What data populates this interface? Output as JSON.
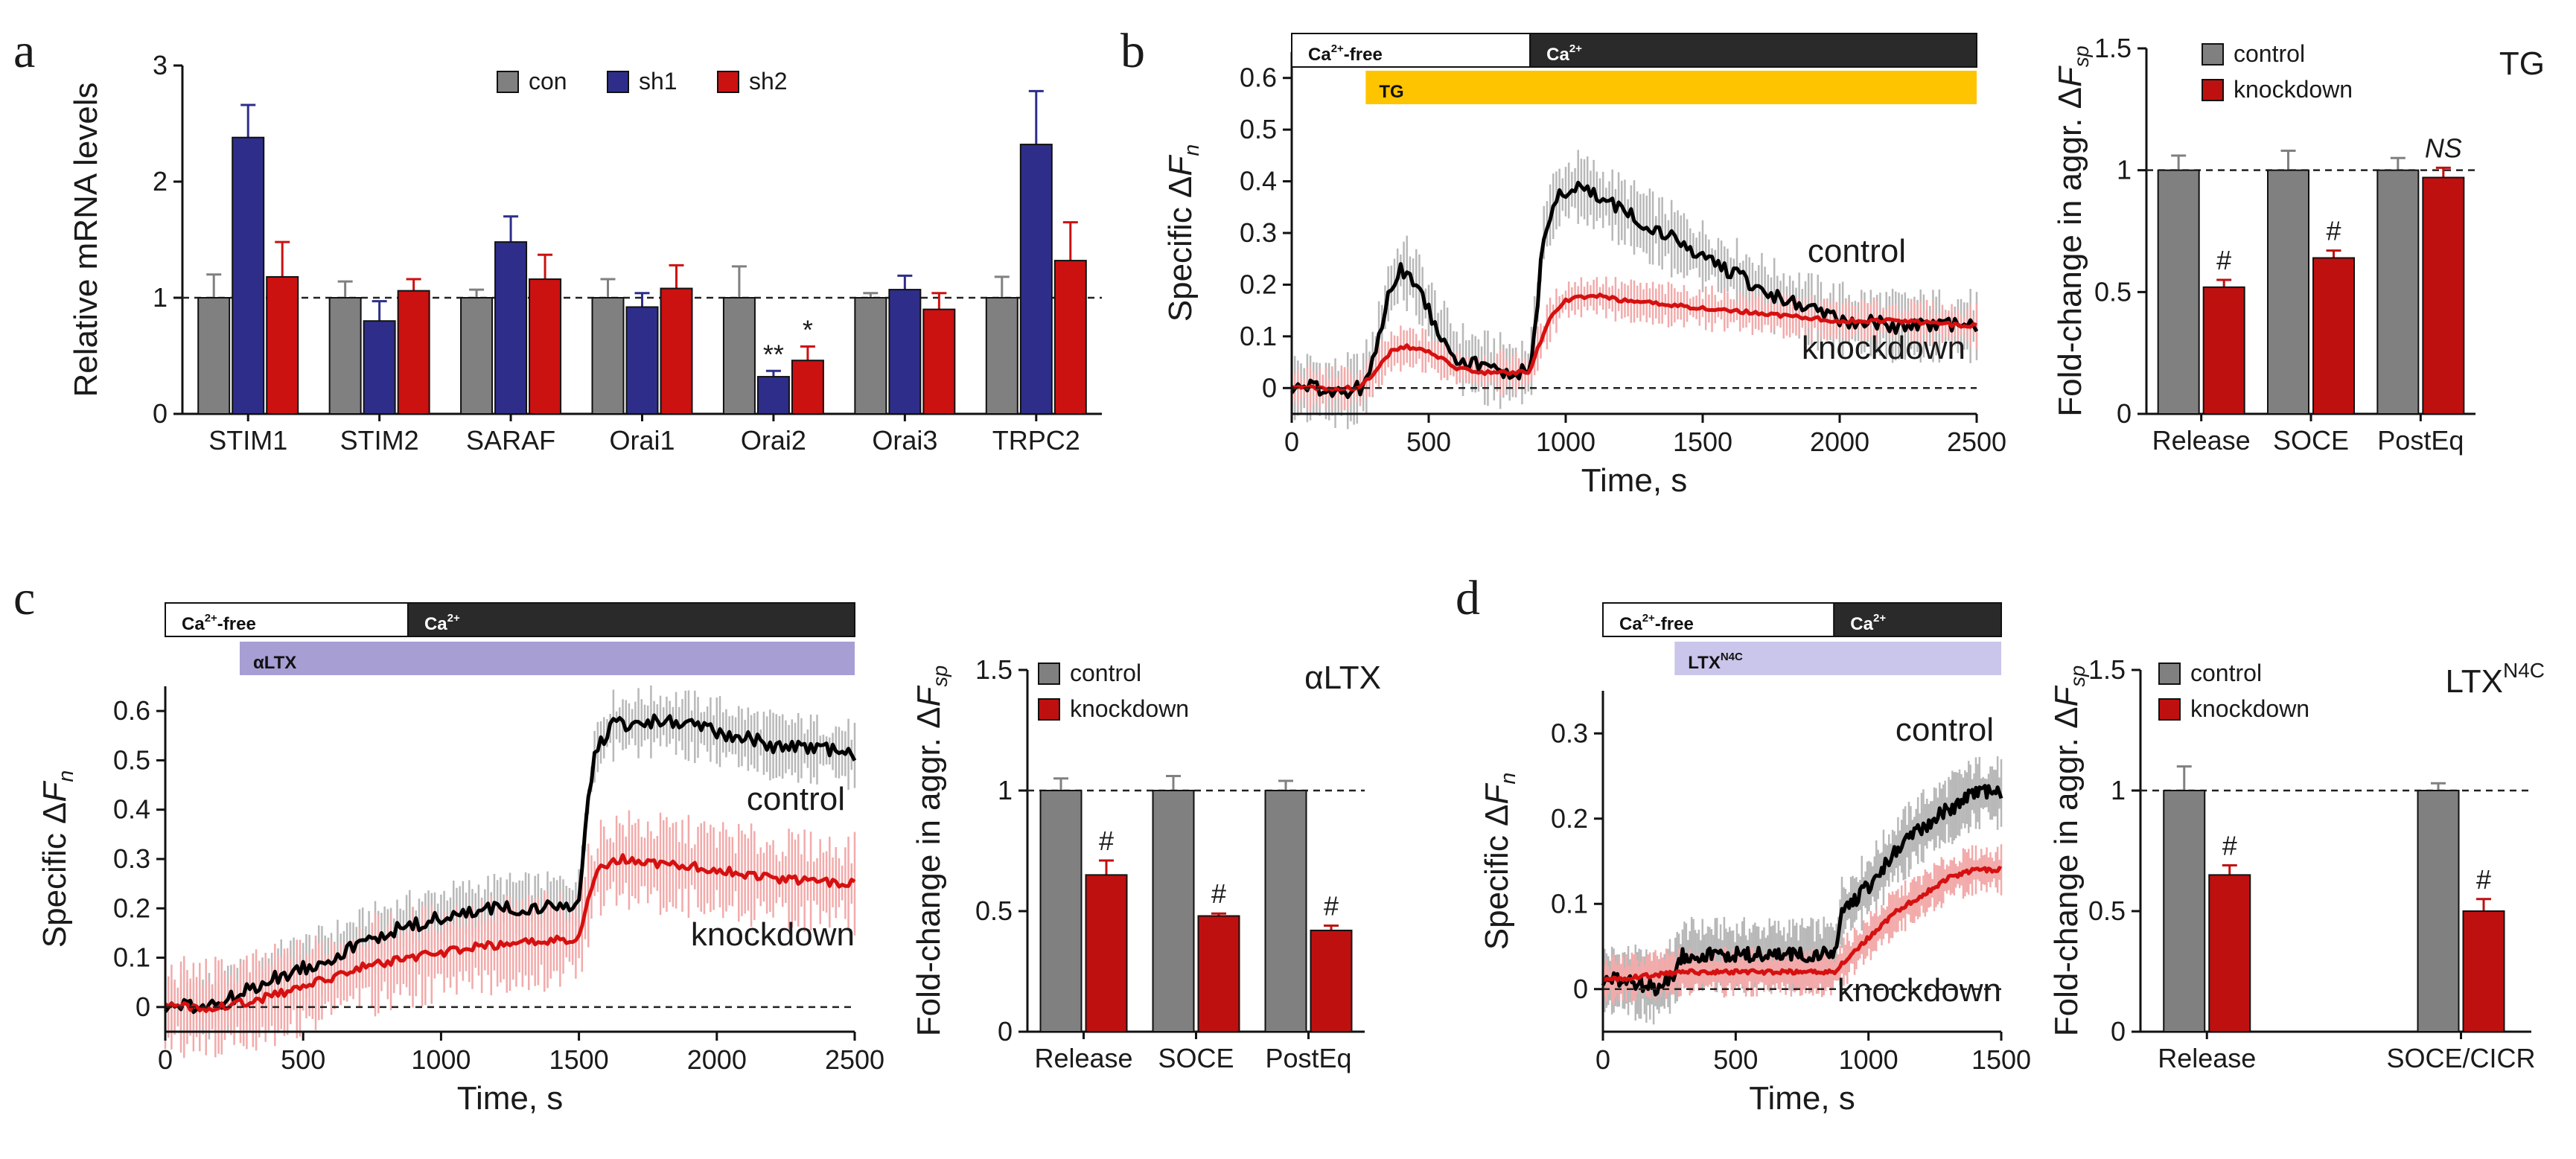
{
  "colors": {
    "con": "#808080",
    "sh1": "#2e2e8a",
    "sh2": "#cc1111",
    "control": "#808080",
    "knockdown": "#bf1010",
    "trace_control": "#000000",
    "trace_control_err": "#b8b8b8",
    "trace_knockdown": "#d51010",
    "trace_knockdown_err": "#f2aaaa",
    "tg": "#ffc400",
    "altx": "#a79ed4",
    "ltxn4c": "#cac5ea",
    "dark_bar": "#2a2a2a"
  },
  "chart_data": [
    {
      "panel": "a",
      "type": "bar",
      "ylabel": "Relative mRNA levels",
      "ylim": [
        0,
        3
      ],
      "yticks": [
        "0",
        "1",
        "2",
        "3"
      ],
      "reference_line": 1,
      "categories": [
        "STIM1",
        "STIM2",
        "SARAF",
        "Orai1",
        "Orai2",
        "Orai3",
        "TRPC2"
      ],
      "series": [
        {
          "name": "con",
          "values": [
            1.0,
            1.0,
            1.0,
            1.0,
            1.0,
            1.0,
            1.0
          ],
          "errors": [
            0.2,
            0.14,
            0.07,
            0.16,
            0.27,
            0.04,
            0.18
          ]
        },
        {
          "name": "sh1",
          "values": [
            2.38,
            0.8,
            1.48,
            0.92,
            0.32,
            1.07,
            2.32
          ],
          "errors": [
            0.28,
            0.17,
            0.22,
            0.12,
            0.05,
            0.12,
            0.46
          ]
        },
        {
          "name": "sh2",
          "values": [
            1.18,
            1.06,
            1.16,
            1.08,
            0.46,
            0.9,
            1.32
          ],
          "errors": [
            0.3,
            0.1,
            0.21,
            0.2,
            0.12,
            0.14,
            0.33
          ]
        }
      ],
      "annotations": [
        {
          "category": "Orai2",
          "series": "sh1",
          "text": "**"
        },
        {
          "category": "Orai2",
          "series": "sh2",
          "text": "*"
        }
      ]
    },
    {
      "panel": "b",
      "type": "line",
      "xlabel": "Time, s",
      "ylabel": "Specific ΔF",
      "ylabel_sub": "n",
      "xlim": [
        0,
        2500
      ],
      "ylim": [
        -0.05,
        0.65
      ],
      "xticks": [
        "0",
        "500",
        "1000",
        "1500",
        "2000",
        "2500"
      ],
      "yticks": [
        "0",
        "0.1",
        "0.2",
        "0.3",
        "0.4",
        "0.5",
        "0.6"
      ],
      "series_labels": [
        "control",
        "knockdown"
      ],
      "protocol": [
        {
          "label": "Ca²⁺-free",
          "start": 0,
          "end": 870,
          "style": "white"
        },
        {
          "label": "Ca²⁺",
          "start": 870,
          "end": 2500,
          "style": "dark"
        },
        {
          "label": "TG",
          "start": 270,
          "end": 2500,
          "style": "tg"
        }
      ],
      "series": [
        {
          "name": "control",
          "points": [
            [
              0,
              0.0
            ],
            [
              80,
              0.0
            ],
            [
              160,
              -0.01
            ],
            [
              250,
              0.0
            ],
            [
              300,
              0.05
            ],
            [
              350,
              0.18
            ],
            [
              400,
              0.23
            ],
            [
              450,
              0.21
            ],
            [
              500,
              0.15
            ],
            [
              550,
              0.1
            ],
            [
              600,
              0.06
            ],
            [
              700,
              0.04
            ],
            [
              800,
              0.03
            ],
            [
              870,
              0.03
            ],
            [
              890,
              0.12
            ],
            [
              920,
              0.3
            ],
            [
              960,
              0.36
            ],
            [
              1000,
              0.38
            ],
            [
              1050,
              0.39
            ],
            [
              1150,
              0.36
            ],
            [
              1250,
              0.33
            ],
            [
              1350,
              0.3
            ],
            [
              1450,
              0.27
            ],
            [
              1550,
              0.24
            ],
            [
              1650,
              0.21
            ],
            [
              1750,
              0.18
            ],
            [
              1850,
              0.16
            ],
            [
              1950,
              0.14
            ],
            [
              2050,
              0.13
            ],
            [
              2200,
              0.12
            ],
            [
              2350,
              0.12
            ],
            [
              2500,
              0.12
            ]
          ],
          "error": 0.05
        },
        {
          "name": "knockdown",
          "points": [
            [
              0,
              0.0
            ],
            [
              250,
              0.0
            ],
            [
              300,
              0.03
            ],
            [
              360,
              0.07
            ],
            [
              420,
              0.08
            ],
            [
              500,
              0.07
            ],
            [
              600,
              0.04
            ],
            [
              700,
              0.03
            ],
            [
              870,
              0.03
            ],
            [
              900,
              0.08
            ],
            [
              950,
              0.14
            ],
            [
              1000,
              0.17
            ],
            [
              1100,
              0.18
            ],
            [
              1200,
              0.17
            ],
            [
              1400,
              0.16
            ],
            [
              1600,
              0.15
            ],
            [
              1800,
              0.14
            ],
            [
              2000,
              0.13
            ],
            [
              2200,
              0.13
            ],
            [
              2500,
              0.12
            ]
          ],
          "error": 0.03
        }
      ]
    },
    {
      "panel": "b",
      "type": "bar",
      "ylabel": "Fold-change in aggr. ΔF",
      "ylabel_sub": "sp",
      "title": "TG",
      "ylim": [
        0,
        1.5
      ],
      "yticks": [
        "0",
        "0.5",
        "1",
        "1.5"
      ],
      "reference_line": 1,
      "legend": [
        "control",
        "knockdown"
      ],
      "categories": [
        "Release",
        "SOCE",
        "PostEq"
      ],
      "series": [
        {
          "name": "control",
          "values": [
            1.0,
            1.0,
            1.0
          ],
          "errors": [
            0.06,
            0.08,
            0.05
          ]
        },
        {
          "name": "knockdown",
          "values": [
            0.52,
            0.64,
            0.97
          ],
          "errors": [
            0.03,
            0.03,
            0.04
          ]
        }
      ],
      "annotations": [
        "#",
        "#",
        "NS"
      ]
    },
    {
      "panel": "c",
      "type": "line",
      "xlabel": "Time, s",
      "ylabel": "Specific ΔF",
      "ylabel_sub": "n",
      "xlim": [
        0,
        2500
      ],
      "ylim": [
        -0.05,
        0.65
      ],
      "xticks": [
        "0",
        "500",
        "1000",
        "1500",
        "2000",
        "2500"
      ],
      "yticks": [
        "0",
        "0.1",
        "0.2",
        "0.3",
        "0.4",
        "0.5",
        "0.6"
      ],
      "series_labels": [
        "control",
        "knockdown"
      ],
      "protocol": [
        {
          "label": "Ca²⁺-free",
          "start": 0,
          "end": 880,
          "style": "white"
        },
        {
          "label": "Ca²⁺",
          "start": 880,
          "end": 2500,
          "style": "dark"
        },
        {
          "label": "αLTX",
          "start": 270,
          "end": 2500,
          "style": "altx"
        }
      ],
      "series": [
        {
          "name": "control",
          "points": [
            [
              0,
              0.0
            ],
            [
              150,
              0.0
            ],
            [
              250,
              0.02
            ],
            [
              400,
              0.06
            ],
            [
              600,
              0.1
            ],
            [
              800,
              0.15
            ],
            [
              1000,
              0.18
            ],
            [
              1200,
              0.2
            ],
            [
              1400,
              0.2
            ],
            [
              1500,
              0.21
            ],
            [
              1530,
              0.4
            ],
            [
              1560,
              0.52
            ],
            [
              1620,
              0.57
            ],
            [
              1800,
              0.58
            ],
            [
              2000,
              0.56
            ],
            [
              2200,
              0.53
            ],
            [
              2400,
              0.52
            ],
            [
              2500,
              0.51
            ]
          ],
          "error": 0.05
        },
        {
          "name": "knockdown",
          "points": [
            [
              0,
              0.0
            ],
            [
              200,
              0.0
            ],
            [
              300,
              0.01
            ],
            [
              500,
              0.04
            ],
            [
              700,
              0.08
            ],
            [
              900,
              0.1
            ],
            [
              1100,
              0.12
            ],
            [
              1300,
              0.13
            ],
            [
              1500,
              0.14
            ],
            [
              1530,
              0.22
            ],
            [
              1570,
              0.28
            ],
            [
              1650,
              0.3
            ],
            [
              1800,
              0.29
            ],
            [
              2000,
              0.28
            ],
            [
              2200,
              0.26
            ],
            [
              2500,
              0.25
            ]
          ],
          "error": 0.07
        }
      ]
    },
    {
      "panel": "c",
      "type": "bar",
      "ylabel": "Fold-change in aggr. ΔF",
      "ylabel_sub": "sp",
      "title": "αLTX",
      "ylim": [
        0,
        1.5
      ],
      "yticks": [
        "0",
        "0.5",
        "1",
        "1.5"
      ],
      "reference_line": 1,
      "legend": [
        "control",
        "knockdown"
      ],
      "categories": [
        "Release",
        "SOCE",
        "PostEq"
      ],
      "series": [
        {
          "name": "control",
          "values": [
            1.0,
            1.0,
            1.0
          ],
          "errors": [
            0.05,
            0.06,
            0.04
          ]
        },
        {
          "name": "knockdown",
          "values": [
            0.65,
            0.48,
            0.42
          ],
          "errors": [
            0.06,
            0.01,
            0.02
          ]
        }
      ],
      "annotations": [
        "#",
        "#",
        "#"
      ]
    },
    {
      "panel": "d",
      "type": "line",
      "xlabel": "Time, s",
      "ylabel": "Specific ΔF",
      "ylabel_sub": "n",
      "xlim": [
        0,
        1500
      ],
      "ylim": [
        -0.05,
        0.35
      ],
      "xticks": [
        "0",
        "500",
        "1000",
        "1500"
      ],
      "yticks": [
        "0",
        "0.1",
        "0.2",
        "0.3"
      ],
      "series_labels": [
        "control",
        "knockdown"
      ],
      "protocol": [
        {
          "label": "Ca²⁺-free",
          "start": 0,
          "end": 870,
          "style": "white"
        },
        {
          "label": "Ca²⁺",
          "start": 870,
          "end": 1500,
          "style": "dark"
        },
        {
          "label": "LTX",
          "label_sup": "N4C",
          "start": 270,
          "end": 1500,
          "style": "ltx"
        }
      ],
      "series": [
        {
          "name": "control",
          "points": [
            [
              0,
              0.01
            ],
            [
              100,
              0.01
            ],
            [
              200,
              0.0
            ],
            [
              270,
              0.02
            ],
            [
              300,
              0.04
            ],
            [
              500,
              0.04
            ],
            [
              700,
              0.04
            ],
            [
              870,
              0.04
            ],
            [
              900,
              0.09
            ],
            [
              1000,
              0.12
            ],
            [
              1100,
              0.16
            ],
            [
              1200,
              0.19
            ],
            [
              1300,
              0.21
            ],
            [
              1400,
              0.23
            ],
            [
              1500,
              0.23
            ]
          ],
          "error": 0.03
        },
        {
          "name": "knockdown",
          "points": [
            [
              0,
              0.01
            ],
            [
              300,
              0.02
            ],
            [
              600,
              0.02
            ],
            [
              870,
              0.02
            ],
            [
              900,
              0.03
            ],
            [
              1000,
              0.06
            ],
            [
              1100,
              0.09
            ],
            [
              1200,
              0.11
            ],
            [
              1300,
              0.13
            ],
            [
              1400,
              0.14
            ],
            [
              1500,
              0.14
            ]
          ],
          "error": 0.02
        }
      ]
    },
    {
      "panel": "d",
      "type": "bar",
      "ylabel": "Fold-change in aggr. ΔF",
      "ylabel_sub": "sp",
      "title": "LTX",
      "title_sup": "N4C",
      "ylim": [
        0,
        1.5
      ],
      "yticks": [
        "0",
        "0.5",
        "1",
        "1.5"
      ],
      "reference_line": 1,
      "legend": [
        "control",
        "knockdown"
      ],
      "categories": [
        "Release",
        "SOCE/CICR"
      ],
      "series": [
        {
          "name": "control",
          "values": [
            1.0,
            1.0
          ],
          "errors": [
            0.1,
            0.03
          ]
        },
        {
          "name": "knockdown",
          "values": [
            0.65,
            0.5
          ],
          "errors": [
            0.04,
            0.05
          ]
        }
      ],
      "annotations": [
        "#",
        "#"
      ]
    }
  ],
  "panel_letters": [
    "a",
    "b",
    "c",
    "d"
  ]
}
